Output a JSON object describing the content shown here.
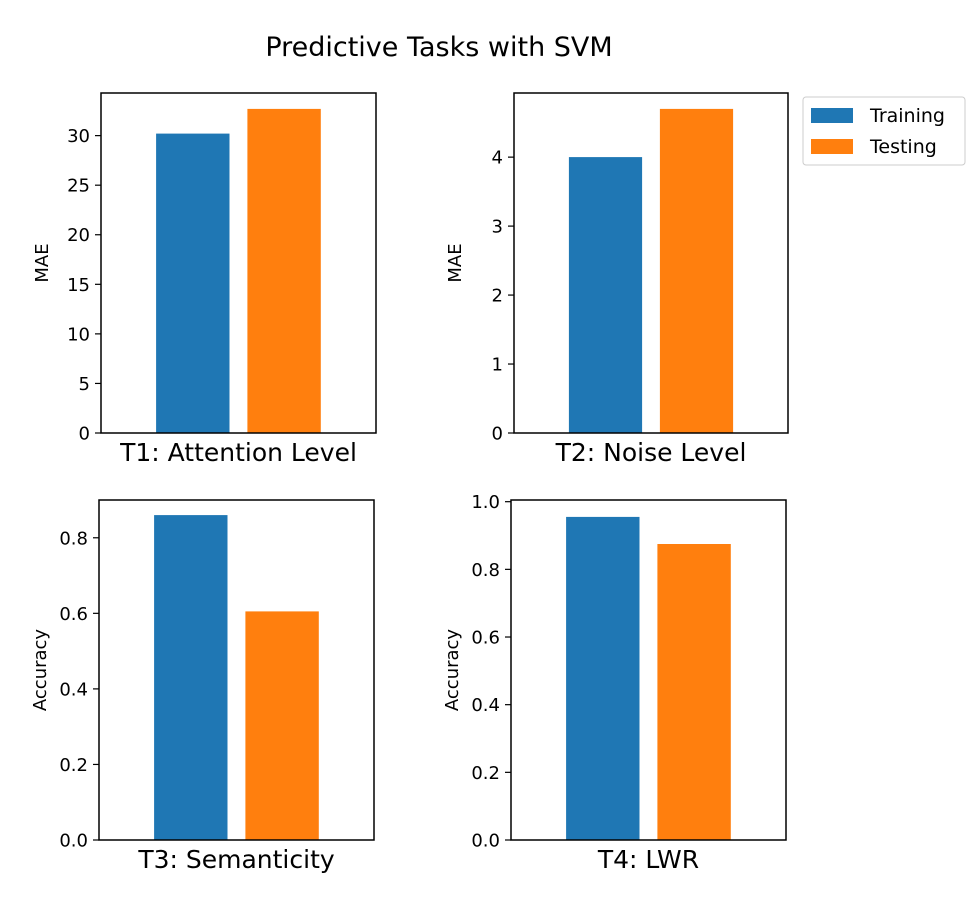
{
  "figure": {
    "title": "Predictive Tasks with SVM"
  },
  "legend": {
    "placement": "upper right outside top-right subplot",
    "entries": [
      {
        "label": "Training",
        "color": "#1f77b4"
      },
      {
        "label": "Testing",
        "color": "#ff7f0e"
      }
    ]
  },
  "chart_data": [
    {
      "type": "bar",
      "xlabel": "T1: Attention Level",
      "ylabel": "MAE",
      "ylim": [
        0,
        34.3
      ],
      "yticks": [
        0,
        5,
        10,
        15,
        20,
        25,
        30
      ],
      "ytick_labels": [
        "0",
        "5",
        "10",
        "15",
        "20",
        "25",
        "30"
      ],
      "series": [
        {
          "name": "Training",
          "values": [
            30.2
          ],
          "color": "#1f77b4"
        },
        {
          "name": "Testing",
          "values": [
            32.7
          ],
          "color": "#ff7f0e"
        }
      ]
    },
    {
      "type": "bar",
      "xlabel": "T2: Noise Level",
      "ylabel": "MAE",
      "ylim": [
        0,
        4.93
      ],
      "yticks": [
        0,
        1,
        2,
        3,
        4
      ],
      "ytick_labels": [
        "0",
        "1",
        "2",
        "3",
        "4"
      ],
      "series": [
        {
          "name": "Training",
          "values": [
            4.0
          ],
          "color": "#1f77b4"
        },
        {
          "name": "Testing",
          "values": [
            4.7
          ],
          "color": "#ff7f0e"
        }
      ]
    },
    {
      "type": "bar",
      "xlabel": "T3: Semanticity",
      "ylabel": "Accuracy",
      "ylim": [
        0,
        0.9
      ],
      "yticks": [
        0.0,
        0.2,
        0.4,
        0.6,
        0.8
      ],
      "ytick_labels": [
        "0.0",
        "0.2",
        "0.4",
        "0.6",
        "0.8"
      ],
      "series": [
        {
          "name": "Training",
          "values": [
            0.86
          ],
          "color": "#1f77b4"
        },
        {
          "name": "Testing",
          "values": [
            0.605
          ],
          "color": "#ff7f0e"
        }
      ]
    },
    {
      "type": "bar",
      "xlabel": "T4: LWR",
      "ylabel": "Accuracy",
      "ylim": [
        0,
        1.005
      ],
      "yticks": [
        0.0,
        0.2,
        0.4,
        0.6,
        0.8,
        1.0
      ],
      "ytick_labels": [
        "0.0",
        "0.2",
        "0.4",
        "0.6",
        "0.8",
        "1.0"
      ],
      "series": [
        {
          "name": "Training",
          "values": [
            0.955
          ],
          "color": "#1f77b4"
        },
        {
          "name": "Testing",
          "values": [
            0.875
          ],
          "color": "#ff7f0e"
        }
      ]
    }
  ]
}
